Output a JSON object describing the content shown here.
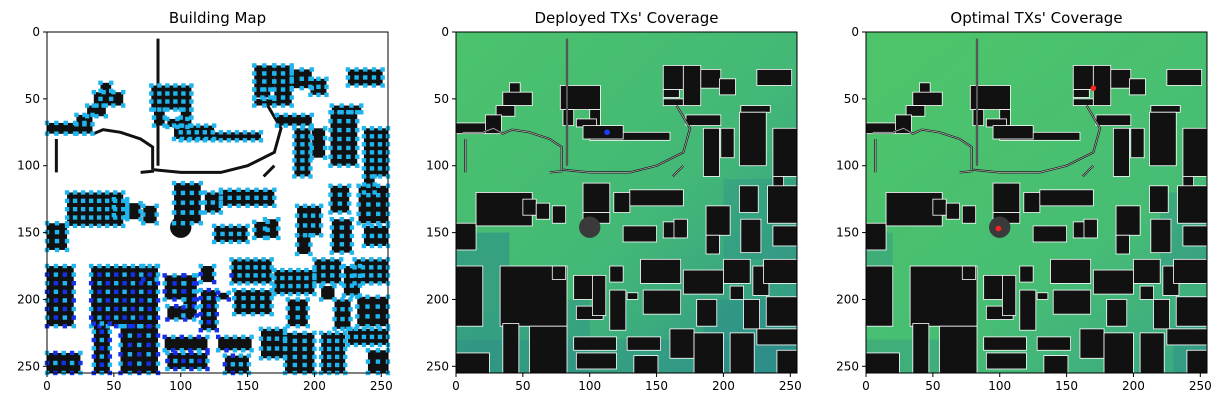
{
  "colors": {
    "building": "#111111",
    "building_outline": "#ffffff",
    "candidate_light": "#1fb5ee",
    "candidate_dark": "#1430e8",
    "coverage_high": "#4cc36c",
    "coverage_low": "#2a8a8a",
    "tx_deployed": "#1e3cff",
    "tx_optimal": "#ff2020"
  },
  "chart_data": [
    {
      "type": "heatmap",
      "title": "Building Map",
      "xlim": [
        0,
        255
      ],
      "ylim": [
        255,
        0
      ],
      "xticks": [
        "0",
        "50",
        "100",
        "150",
        "200",
        "250"
      ],
      "yticks": [
        "0",
        "50",
        "100",
        "150",
        "200",
        "250"
      ],
      "markers": []
    },
    {
      "type": "heatmap",
      "title": "Deployed TXs' Coverage",
      "xlim": [
        0,
        255
      ],
      "ylim": [
        255,
        0
      ],
      "xticks": [
        "0",
        "50",
        "100",
        "150",
        "200",
        "250"
      ],
      "yticks": [
        "0",
        "50",
        "100",
        "150",
        "200",
        "250"
      ],
      "markers": [
        {
          "x": 113,
          "y": 75,
          "color": "#1e3cff"
        }
      ]
    },
    {
      "type": "heatmap",
      "title": "Optimal TXs' Coverage",
      "xlim": [
        0,
        255
      ],
      "ylim": [
        255,
        0
      ],
      "xticks": [
        "0",
        "50",
        "100",
        "150",
        "200",
        "250"
      ],
      "yticks": [
        "0",
        "50",
        "100",
        "150",
        "200",
        "250"
      ],
      "markers": [
        {
          "x": 170,
          "y": 42,
          "color": "#ff2020"
        },
        {
          "x": 99,
          "y": 147,
          "color": "#ff2020"
        }
      ]
    }
  ]
}
